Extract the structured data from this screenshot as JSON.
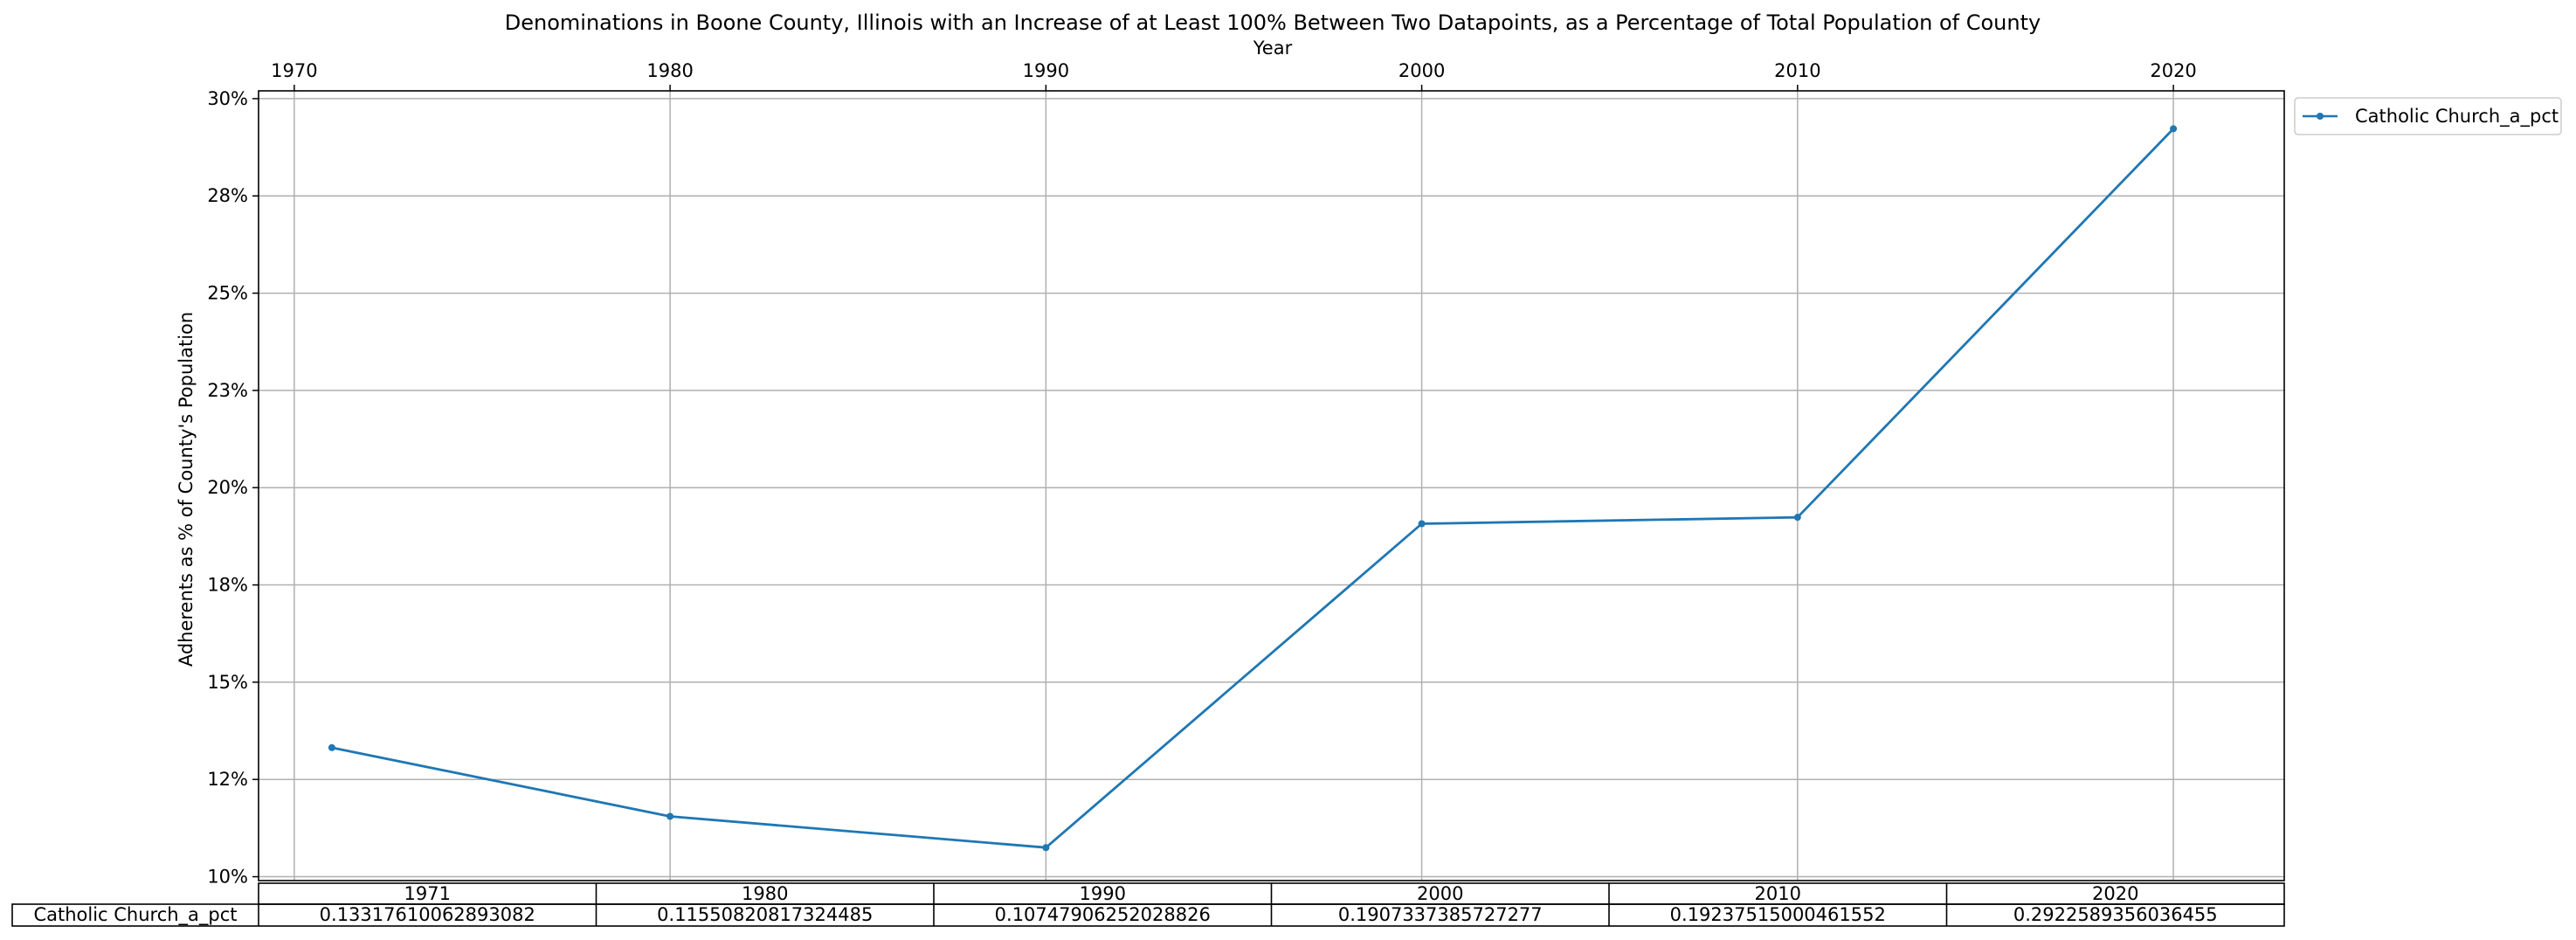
{
  "chart_data": {
    "type": "line",
    "title": "Denominations in Boone County, Illinois with an Increase of at Least 100% Between Two Datapoints, as a Percentage of Total Population of County",
    "xlabel": "Year",
    "ylabel": "Adherents as % of County's Population",
    "x": [
      1971,
      1980,
      1990,
      2000,
      2010,
      2020
    ],
    "xlim": [
      1969.05,
      2022.95
    ],
    "ylim": [
      0.099,
      0.302
    ],
    "x_ticks": [
      1970,
      1980,
      1990,
      2000,
      2010,
      2020
    ],
    "x_tick_labels": [
      "1970",
      "1980",
      "1990",
      "2000",
      "2010",
      "2020"
    ],
    "x_axis_position": "top",
    "y_ticks": [
      0.1,
      0.125,
      0.15,
      0.175,
      0.2,
      0.225,
      0.25,
      0.275,
      0.3
    ],
    "y_tick_labels": [
      "10%",
      "12%",
      "15%",
      "18%",
      "20%",
      "23%",
      "25%",
      "28%",
      "30%"
    ],
    "grid": true,
    "legend_position": "outside-top-right",
    "colors": {
      "series": "#1f77b4",
      "grid": "#b0b0b0"
    },
    "series": [
      {
        "name": "Catholic Church_a_pct",
        "values": [
          0.13317610062893082,
          0.11550820817324485,
          0.10747906252028826,
          0.1907337385727277,
          0.19237515000461552,
          0.2922589356036455
        ]
      }
    ],
    "table": {
      "col_labels": [
        "1971",
        "1980",
        "1990",
        "2000",
        "2010",
        "2020"
      ],
      "row_label": "Catholic Church_a_pct",
      "cells": [
        "0.13317610062893082",
        "0.11550820817324485",
        "0.10747906252028826",
        "0.1907337385727277",
        "0.19237515000461552",
        "0.2922589356036455"
      ]
    }
  }
}
